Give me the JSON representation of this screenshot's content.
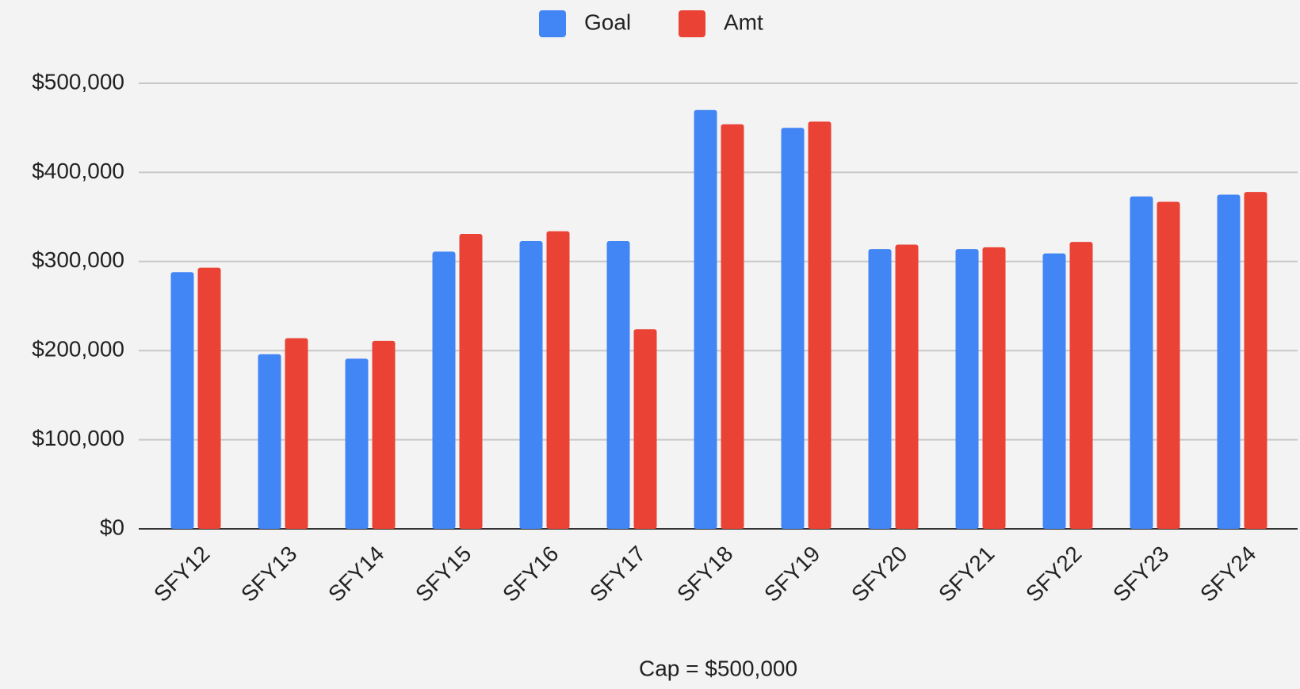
{
  "chart_data": {
    "type": "bar",
    "x_label": "Cap = $500,000",
    "categories": [
      "SFY12",
      "SFY13",
      "SFY14",
      "SFY15",
      "SFY16",
      "SFY17",
      "SFY18",
      "SFY19",
      "SFY20",
      "SFY21",
      "SFY22",
      "SFY23",
      "SFY24"
    ],
    "series": [
      {
        "name": "Goal",
        "color": "#4285f4",
        "values": [
          288000,
          196000,
          191000,
          311000,
          323000,
          323000,
          470000,
          450000,
          314000,
          314000,
          309000,
          373000,
          375000
        ]
      },
      {
        "name": "Amt",
        "color": "#ea4335",
        "values": [
          293000,
          214000,
          211000,
          331000,
          334000,
          224000,
          454000,
          457000,
          319000,
          316000,
          322000,
          367000,
          378000
        ]
      }
    ],
    "ylim": [
      0,
      500000
    ],
    "yticks": [
      {
        "value": 0,
        "label": "$0"
      },
      {
        "value": 100000,
        "label": "$100,000"
      },
      {
        "value": 200000,
        "label": "$200,000"
      },
      {
        "value": 300000,
        "label": "$300,000"
      },
      {
        "value": 400000,
        "label": "$400,000"
      },
      {
        "value": 500000,
        "label": "$500,000"
      }
    ],
    "grid": true,
    "legend": "top"
  }
}
